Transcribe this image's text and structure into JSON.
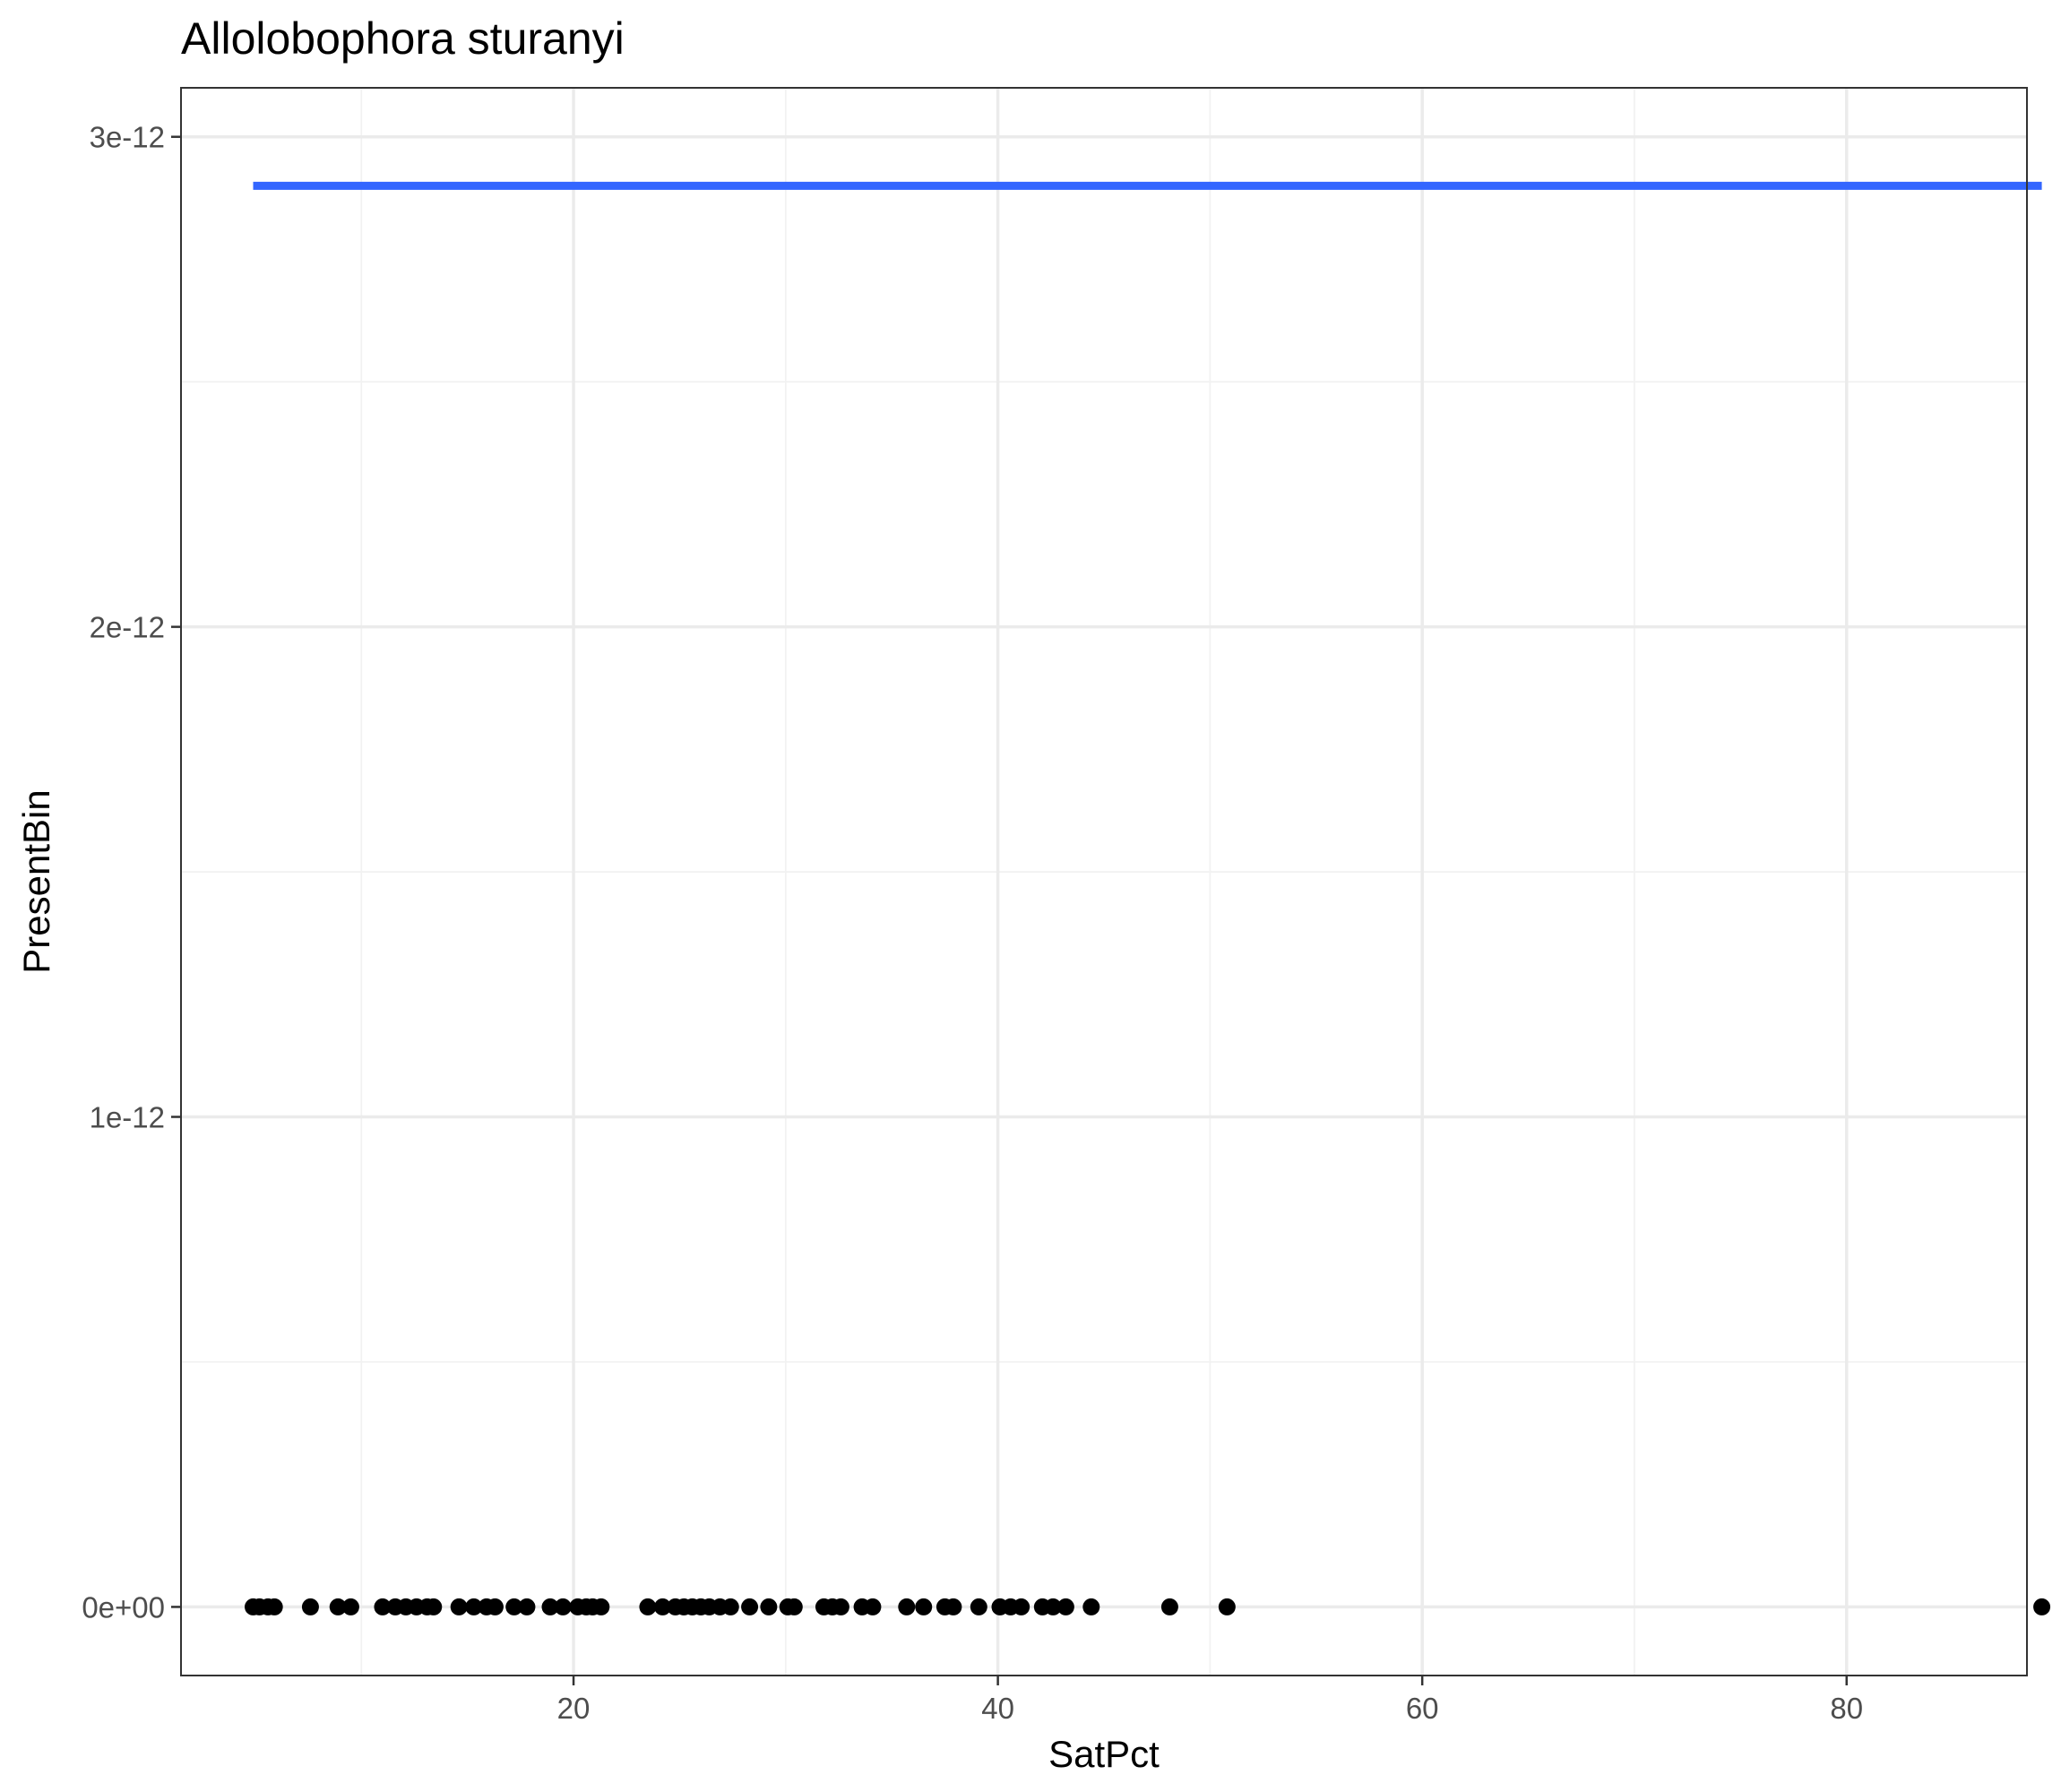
{
  "chart_data": {
    "type": "scatter",
    "title": "Allolobophora sturanyi",
    "xlabel": "SatPct",
    "ylabel": "PresentBin",
    "xlim": [
      1.5,
      88.5
    ],
    "ylim": [
      -1.4e-13,
      3.1e-12
    ],
    "x_ticks": [
      20,
      40,
      60,
      80
    ],
    "x_minor_ticks": [
      10,
      30,
      50,
      70
    ],
    "y_ticks": [
      0,
      1e-12,
      2e-12,
      3e-12
    ],
    "y_tick_labels": [
      "0e+00",
      "1e-12",
      "2e-12",
      "3e-12"
    ],
    "y_minor_ticks": [
      5e-13,
      1.5e-12,
      2.5e-12
    ],
    "grid": true,
    "points": {
      "color": "#000000",
      "x": [
        4.9,
        5.2,
        5.6,
        5.9,
        7.6,
        8.9,
        9.5,
        11.0,
        11.6,
        12.1,
        12.6,
        13.1,
        13.4,
        14.6,
        15.3,
        15.9,
        16.3,
        17.2,
        17.8,
        18.9,
        19.5,
        20.2,
        20.6,
        20.9,
        21.3,
        23.5,
        24.2,
        24.8,
        25.2,
        25.6,
        26.0,
        26.4,
        26.9,
        27.4,
        28.3,
        29.2,
        30.1,
        30.4,
        31.8,
        32.2,
        32.6,
        33.6,
        34.1,
        35.7,
        36.5,
        37.5,
        37.9,
        39.1,
        40.1,
        40.6,
        41.1,
        42.1,
        42.6,
        43.2,
        44.4,
        48.1,
        50.8,
        89.2
      ],
      "y": [
        0,
        0,
        0,
        0,
        0,
        0,
        0,
        0,
        0,
        0,
        0,
        0,
        0,
        0,
        0,
        0,
        0,
        0,
        0,
        0,
        0,
        0,
        0,
        0,
        0,
        0,
        0,
        0,
        0,
        0,
        0,
        0,
        0,
        0,
        0,
        0,
        0,
        0,
        0,
        0,
        0,
        0,
        0,
        0,
        0,
        0,
        0,
        0,
        0,
        0,
        0,
        0,
        0,
        0,
        0,
        0,
        0,
        0
      ]
    },
    "fit_line": {
      "color": "#3366ff",
      "x": [
        4.9,
        89.2
      ],
      "y": [
        2.9e-12,
        2.9e-12
      ]
    }
  }
}
